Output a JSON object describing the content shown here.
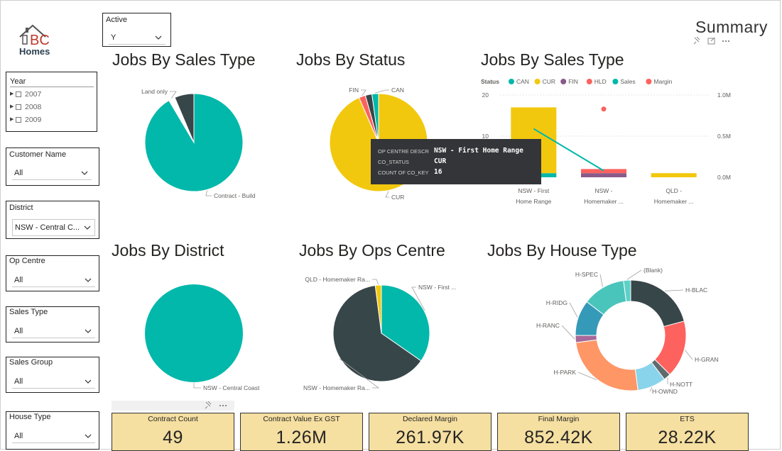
{
  "logo": {
    "letters": "BC",
    "word": "Homes"
  },
  "summary_title": "Summary",
  "slicers": {
    "active": {
      "title": "Active",
      "value": "Y"
    },
    "year": {
      "title": "Year",
      "items": [
        "2007",
        "2008",
        "2009"
      ]
    },
    "customer_name": {
      "title": "Customer Name",
      "value": "All"
    },
    "district": {
      "title": "District",
      "value": "NSW - Central C..."
    },
    "op_centre": {
      "title": "Op Centre",
      "value": "All"
    },
    "sales_type": {
      "title": "Sales Type",
      "value": "All"
    },
    "sales_group": {
      "title": "Sales Group",
      "value": "All"
    },
    "house_type": {
      "title": "House Type",
      "value": "All"
    }
  },
  "titles": {
    "sales_type_pie": "Jobs By Sales Type",
    "status_pie": "Jobs By Status",
    "sales_type_combo": "Jobs By Sales Type",
    "district_pie": "Jobs By District",
    "ops_centre_pie": "Jobs By Ops Centre",
    "house_type_donut": "Jobs By House Type"
  },
  "colors": {
    "teal": "#01b8aa",
    "dark": "#374649",
    "yellow": "#f2c80f",
    "red": "#fd625e",
    "purple": "#8a5a8a",
    "salmon": "#fe9666",
    "blue": "#3599b8",
    "light_blue": "#8ad4eb",
    "aqua": "#4ac5bb"
  },
  "tooltip": {
    "rows": [
      {
        "label": "OP CENTRE DESCR",
        "value": "NSW - First Home Range"
      },
      {
        "label": "CO_STATUS",
        "value": "CUR"
      },
      {
        "label": "COUNT OF CO_KEY",
        "value": "16"
      }
    ]
  },
  "kpis": [
    {
      "title": "Contract Count",
      "value": "49"
    },
    {
      "title": "Contract Value Ex GST",
      "value": "1.26M"
    },
    {
      "title": "Declared Margin",
      "value": "261.97K"
    },
    {
      "title": "Final Margin",
      "value": "852.42K"
    },
    {
      "title": "ETS",
      "value": "28.22K"
    }
  ],
  "chart_data": [
    {
      "type": "pie",
      "title": "Jobs By Sales Type",
      "slices": [
        {
          "label": "Contract - Build",
          "value": 43,
          "color": "#01b8aa",
          "show_label": true
        },
        {
          "label": "Land only",
          "value": 1,
          "color": "#ffffff",
          "show_label": true
        },
        {
          "label": "",
          "value": 3,
          "color": "#374649",
          "show_label": false
        }
      ]
    },
    {
      "type": "pie",
      "title": "Jobs By Status",
      "slices": [
        {
          "label": "CUR",
          "value": 43,
          "color": "#f2c80f",
          "show_label": true
        },
        {
          "label": "FIN",
          "value": 1,
          "color": "#fd625e",
          "show_label": true
        },
        {
          "label": "",
          "value": 1,
          "color": "#374649",
          "show_label": false
        },
        {
          "label": "CAN",
          "value": 1,
          "color": "#01b8aa",
          "show_label": true
        }
      ]
    },
    {
      "type": "bar",
      "title": "Jobs By Sales Type",
      "legend_title": "Status",
      "legend": [
        {
          "name": "CAN",
          "color": "#01b8aa"
        },
        {
          "name": "CUR",
          "color": "#f2c80f"
        },
        {
          "name": "FIN",
          "color": "#8a5a8a"
        },
        {
          "name": "HLD",
          "color": "#fd625e"
        },
        {
          "name": "Sales",
          "color": "#01b8aa"
        },
        {
          "name": "Margin",
          "color": "#fd625e"
        }
      ],
      "categories": [
        [
          "NSW - First",
          "Home Range"
        ],
        [
          "NSW -",
          "Homemaker ..."
        ],
        [
          "QLD -",
          "Homemaker ..."
        ]
      ],
      "stacks": [
        [
          {
            "status": "CAN",
            "value": 1,
            "color": "#01b8aa"
          },
          {
            "status": "CUR",
            "value": 16,
            "color": "#f2c80f"
          }
        ],
        [
          {
            "status": "FIN",
            "value": 1,
            "color": "#8a5a8a"
          },
          {
            "status": "HLD",
            "value": 1,
            "color": "#fd625e"
          }
        ],
        [
          {
            "status": "CUR",
            "value": 1,
            "color": "#f2c80f"
          }
        ]
      ],
      "y_ticks": [
        "20",
        "10"
      ],
      "y_max": 20,
      "y2_ticks": [
        "1.0M",
        "0.5M",
        "0.0M"
      ],
      "y2_max": 1000000,
      "sales_line": [
        {
          "category": 0,
          "value": 590000
        },
        {
          "category": 1,
          "value": 80000
        }
      ],
      "margin_points": [
        {
          "category": 1,
          "value": 830000
        }
      ]
    },
    {
      "type": "pie",
      "title": "Jobs By District",
      "slices": [
        {
          "label": "NSW - Central Coast",
          "value": 49,
          "color": "#01b8aa",
          "show_label": true
        }
      ]
    },
    {
      "type": "pie",
      "title": "Jobs By Ops Centre",
      "slices": [
        {
          "label": "NSW - First ...",
          "value": 17,
          "color": "#01b8aa",
          "show_label": true
        },
        {
          "label": "NSW - Homemaker Ra...",
          "value": 31,
          "color": "#374649",
          "show_label": true
        },
        {
          "label": "QLD - Homemaker Ra...",
          "value": 1,
          "color": "#f2c80f",
          "show_label": true
        }
      ]
    },
    {
      "type": "pie",
      "title": "Jobs By House Type",
      "donut": true,
      "slices": [
        {
          "label": "H-BLAC",
          "value": 10,
          "color": "#374649"
        },
        {
          "label": "H-GRAN",
          "value": 8,
          "color": "#fd625e"
        },
        {
          "label": "H-NOTT",
          "value": 1,
          "color": "#5f6b6d"
        },
        {
          "label": "H-OWND",
          "value": 4,
          "color": "#8ad4eb"
        },
        {
          "label": "H-PARK",
          "value": 12,
          "color": "#fe9666"
        },
        {
          "label": "H-RANC",
          "value": 1,
          "color": "#a66999"
        },
        {
          "label": "H-RIDG",
          "value": 5,
          "color": "#3599b8"
        },
        {
          "label": "H-SPEC",
          "value": 6,
          "color": "#4ac5bb"
        },
        {
          "label": "(Blank)",
          "value": 1,
          "color": "#5fd0c7"
        }
      ]
    }
  ]
}
